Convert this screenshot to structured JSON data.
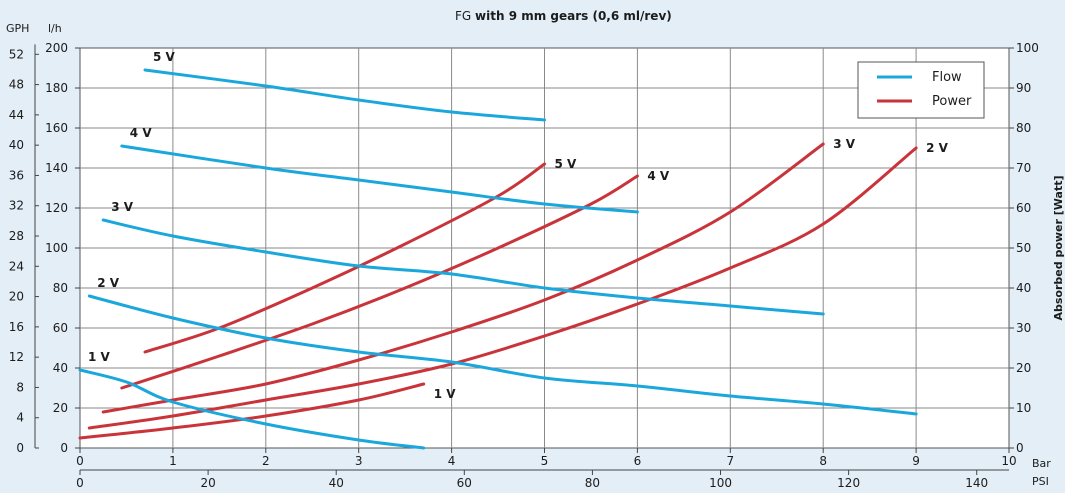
{
  "chart_data": {
    "type": "line",
    "title_prefix": "FG",
    "title_bold": "with 9  mm gears (0,6 ml/rev)",
    "xlabel_bar": "Bar",
    "xlabel_psi": "PSI",
    "ylabel_gph": "GPH",
    "ylabel_lh": "l/h",
    "ylabel_right": "Absorbed power [Watt]",
    "x_bar_ticks": [
      "0",
      "1",
      "2",
      "3",
      "4",
      "5",
      "6",
      "7",
      "8",
      "9",
      "10"
    ],
    "x_psi_ticks": [
      "0",
      "20",
      "40",
      "60",
      "80",
      "100",
      "120",
      "140"
    ],
    "y_lh_ticks": [
      "0",
      "20",
      "40",
      "60",
      "80",
      "100",
      "120",
      "140",
      "160",
      "180",
      "200"
    ],
    "y_gph_ticks": [
      "0",
      "4",
      "8",
      "12",
      "16",
      "20",
      "24",
      "28",
      "32",
      "36",
      "40",
      "44",
      "48",
      "52"
    ],
    "y_watt_ticks": [
      "0",
      "10",
      "20",
      "30",
      "40",
      "50",
      "60",
      "70",
      "80",
      "90",
      "100"
    ],
    "xlim": [
      0,
      10
    ],
    "ylim_lh": [
      0,
      200
    ],
    "ylim_watt": [
      0,
      100
    ],
    "grid": true,
    "legend_position": "top-right",
    "legend": [
      {
        "name": "Flow",
        "color": "#1aa7dc"
      },
      {
        "name": "Power",
        "color": "#c9343a"
      }
    ],
    "flow_series": [
      {
        "name": "5 V",
        "points": [
          [
            0.7,
            189
          ],
          [
            2,
            181
          ],
          [
            3,
            174
          ],
          [
            4,
            168
          ],
          [
            5,
            164
          ]
        ]
      },
      {
        "name": "4 V",
        "points": [
          [
            0.45,
            151
          ],
          [
            2,
            140
          ],
          [
            3,
            134
          ],
          [
            4,
            128
          ],
          [
            5,
            122
          ],
          [
            6,
            118
          ]
        ]
      },
      {
        "name": "3 V",
        "points": [
          [
            0.25,
            114
          ],
          [
            1,
            106
          ],
          [
            2,
            98
          ],
          [
            3,
            91
          ],
          [
            4,
            87
          ],
          [
            5,
            80
          ],
          [
            6,
            75
          ],
          [
            7,
            71
          ],
          [
            8,
            67
          ]
        ]
      },
      {
        "name": "2 V",
        "points": [
          [
            0.1,
            76
          ],
          [
            1,
            65
          ],
          [
            2,
            55
          ],
          [
            3,
            48
          ],
          [
            4,
            43
          ],
          [
            5,
            35
          ],
          [
            6,
            31
          ],
          [
            7,
            26
          ],
          [
            8,
            22
          ],
          [
            9,
            17
          ]
        ]
      },
      {
        "name": "1 V",
        "points": [
          [
            0,
            39
          ],
          [
            0.5,
            33
          ],
          [
            1,
            23
          ],
          [
            2,
            12
          ],
          [
            3,
            4
          ],
          [
            3.7,
            0
          ]
        ]
      }
    ],
    "power_series": [
      {
        "name": "5 V",
        "points": [
          [
            0.7,
            24
          ],
          [
            1.5,
            30
          ],
          [
            2.5,
            40
          ],
          [
            3.5,
            51
          ],
          [
            4.5,
            63
          ],
          [
            5,
            71
          ]
        ]
      },
      {
        "name": "4 V",
        "points": [
          [
            0.45,
            15
          ],
          [
            1.5,
            23
          ],
          [
            2.5,
            31
          ],
          [
            3.5,
            40
          ],
          [
            4.5,
            50
          ],
          [
            5.5,
            61
          ],
          [
            6,
            68
          ]
        ]
      },
      {
        "name": "3 V",
        "points": [
          [
            0.25,
            9
          ],
          [
            1,
            12
          ],
          [
            2,
            16
          ],
          [
            3,
            22
          ],
          [
            4,
            29
          ],
          [
            5,
            37
          ],
          [
            6,
            47
          ],
          [
            7,
            59
          ],
          [
            8,
            76
          ]
        ]
      },
      {
        "name": "2 V",
        "points": [
          [
            0.1,
            5
          ],
          [
            1,
            8
          ],
          [
            2,
            12
          ],
          [
            3,
            16
          ],
          [
            4,
            21
          ],
          [
            5,
            28
          ],
          [
            6,
            36
          ],
          [
            7,
            45
          ],
          [
            8,
            56
          ],
          [
            9,
            75
          ]
        ]
      },
      {
        "name": "1 V",
        "points": [
          [
            0,
            2.5
          ],
          [
            1,
            5
          ],
          [
            2,
            8
          ],
          [
            3,
            12
          ],
          [
            3.7,
            16
          ]
        ]
      }
    ],
    "flow_labels": [
      {
        "text": "5 V"
      },
      {
        "text": "4 V"
      },
      {
        "text": "3 V"
      },
      {
        "text": "2 V"
      },
      {
        "text": "1 V"
      }
    ],
    "power_labels": [
      {
        "text": "5 V"
      },
      {
        "text": "4 V"
      },
      {
        "text": "3 V"
      },
      {
        "text": "2 V"
      },
      {
        "text": "1 V"
      }
    ]
  }
}
